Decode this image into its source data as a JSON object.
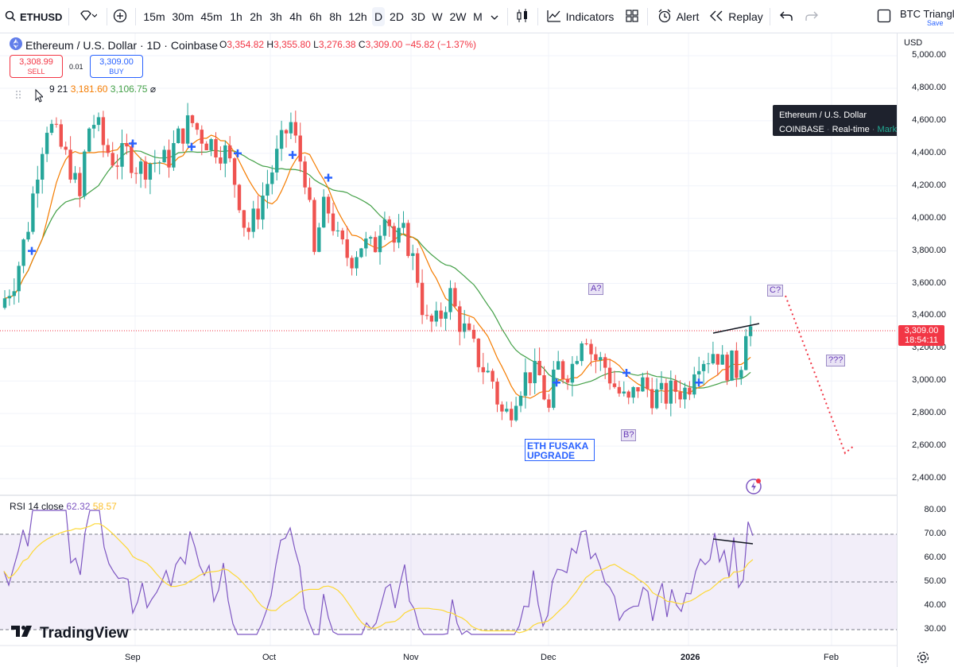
{
  "toolbar": {
    "symbol": "ETHUSD",
    "timeframes": [
      "15m",
      "30m",
      "45m",
      "1h",
      "2h",
      "3h",
      "4h",
      "6h",
      "8h",
      "12h",
      "D",
      "2D",
      "3D",
      "W",
      "2W",
      "M"
    ],
    "active_timeframe": "D",
    "indicators_label": "Indicators",
    "alert_label": "Alert",
    "replay_label": "Replay",
    "layout_name": "BTC Triangle",
    "save_label": "Save"
  },
  "legend": {
    "title": "Ethereum / U.S. Dollar · 1D · Coinbase",
    "o_label": "O",
    "o_val": "3,354.82",
    "h_label": "H",
    "h_val": "3,355.80",
    "l_label": "L",
    "l_val": "3,276.38",
    "c_label": "C",
    "c_val": "3,309.00",
    "change": "−45.82 (−1.37%)",
    "sell_price": "3,308.99",
    "sell_label": "SELL",
    "spread": "0.01",
    "buy_price": "3,309.00",
    "buy_label": "BUY",
    "ma_params": "9 21",
    "ma_fast": "3,181.60",
    "ma_slow": "3,106.75"
  },
  "tooltip": {
    "line1": "Ethereum / U.S. Dollar",
    "exchange": "COINBASE",
    "feed": "Real-time",
    "status": "Market open"
  },
  "price_axis": {
    "currency": "USD",
    "labels": [
      "5,000.00",
      "4,800.00",
      "4,600.00",
      "4,400.00",
      "4,200.00",
      "4,000.00",
      "3,800.00",
      "3,600.00",
      "3,400.00",
      "3,200.00",
      "3,000.00",
      "2,800.00",
      "2,600.00",
      "2,400.00"
    ],
    "current_price": "3,309.00",
    "countdown": "18:54:11"
  },
  "annotations": {
    "a": "A?",
    "b": "B?",
    "c": "C?",
    "q": "???",
    "fusaka_line1": "ETH FUSAKA",
    "fusaka_line2": "UPGRADE"
  },
  "rsi": {
    "label": "RSI 14 close",
    "value": "62.32",
    "ma_value": "58.57",
    "axis": [
      "80.00",
      "70.00",
      "60.00",
      "50.00",
      "40.00",
      "30.00"
    ]
  },
  "time_axis": [
    "Sep",
    "Oct",
    "Nov",
    "Dec",
    "2026",
    "Feb"
  ],
  "brand": "TradingView",
  "colors": {
    "up": "#26a69a",
    "down": "#ef5350",
    "ma_fast": "#f57c00",
    "ma_slow": "#43a047",
    "rsi": "#7e57c2",
    "rsi_ma": "#fdd835"
  }
}
